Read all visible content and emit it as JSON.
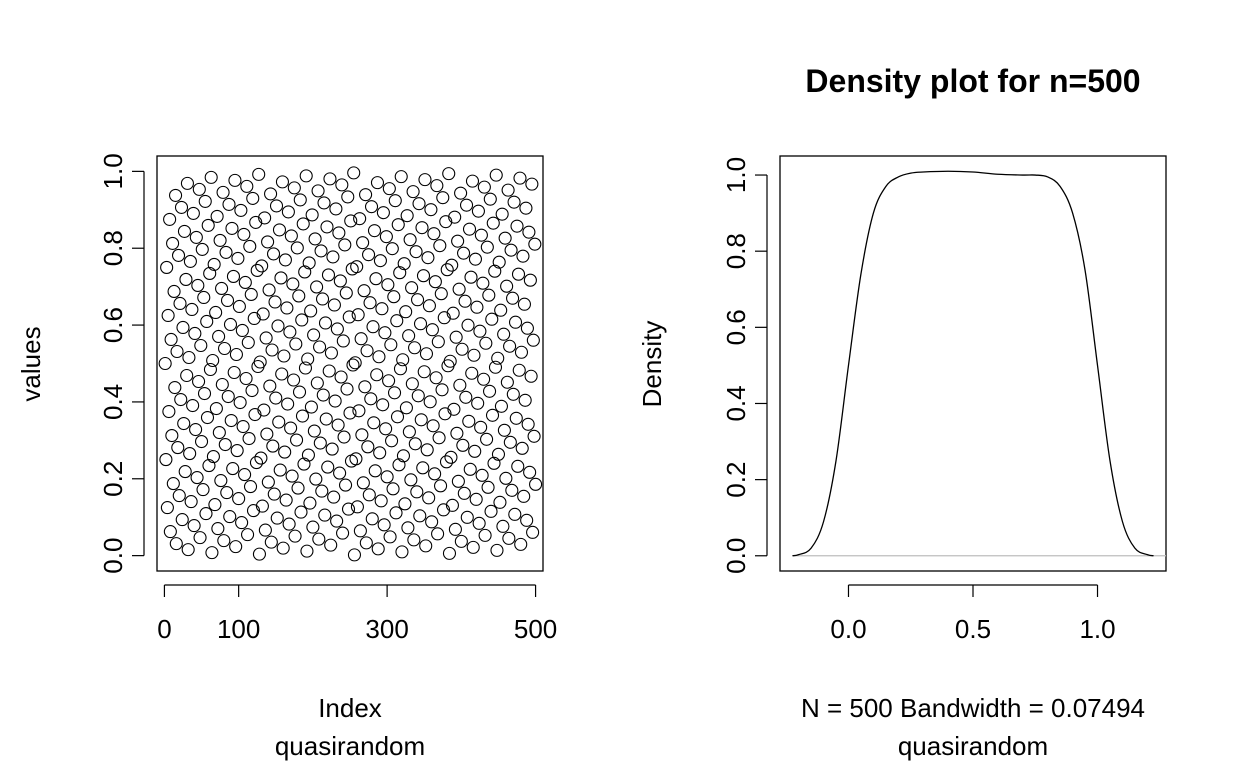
{
  "chart_data": [
    {
      "type": "scatter",
      "xlabel": "Index",
      "sub": "quasirandom",
      "ylabel": "values",
      "xlim": [
        -10,
        510
      ],
      "ylim": [
        -0.04,
        1.04
      ],
      "xticks": [
        0,
        100,
        300,
        500
      ],
      "xtick_labels": [
        "0",
        "100",
        "300",
        "500"
      ],
      "yticks": [
        0,
        0.2,
        0.4,
        0.6,
        0.8,
        1
      ],
      "ytick_labels": [
        "0.0",
        "0.2",
        "0.4",
        "0.6",
        "0.8",
        "1.0"
      ],
      "marker": "open-circle",
      "n": 500,
      "series": {
        "sequence": "van der Corput (base 2), points i = 1..500 plotted as (i, value)",
        "first_values": [
          0.5,
          0.25,
          0.75,
          0.125,
          0.625,
          0.375,
          0.875,
          0.0625,
          0.5625,
          0.3125
        ]
      },
      "grid": false,
      "legend": "none"
    },
    {
      "type": "line",
      "title": "Density plot for n=500",
      "xlabel": "N = 500   Bandwidth = 0.07494",
      "sub": "quasirandom",
      "ylabel": "Density",
      "xlim": [
        -0.275,
        1.275
      ],
      "ylim": [
        -0.04,
        1.05
      ],
      "xticks": [
        0,
        0.5,
        1
      ],
      "xtick_labels": [
        "0.0",
        "0.5",
        "1.0"
      ],
      "yticks": [
        0,
        0.2,
        0.4,
        0.6,
        0.8,
        1
      ],
      "ytick_labels": [
        "0.0",
        "0.2",
        "0.4",
        "0.6",
        "0.8",
        "1.0"
      ],
      "series": {
        "x": [
          -0.225,
          -0.2,
          -0.15,
          -0.1,
          -0.05,
          0.0,
          0.05,
          0.1,
          0.15,
          0.2,
          0.25,
          0.3,
          0.4,
          0.5,
          0.6,
          0.7,
          0.75,
          0.8,
          0.85,
          0.9,
          0.95,
          1.0,
          1.05,
          1.1,
          1.15,
          1.2,
          1.225
        ],
        "y": [
          0.0,
          0.003,
          0.02,
          0.09,
          0.25,
          0.5,
          0.74,
          0.9,
          0.97,
          0.995,
          1.005,
          1.008,
          1.01,
          1.008,
          1.002,
          1.0,
          1.0,
          0.995,
          0.97,
          0.9,
          0.75,
          0.5,
          0.25,
          0.09,
          0.02,
          0.003,
          0.0
        ]
      },
      "baseline": {
        "y": 0,
        "color": "#bebebe"
      },
      "grid": false,
      "legend": "none"
    }
  ]
}
